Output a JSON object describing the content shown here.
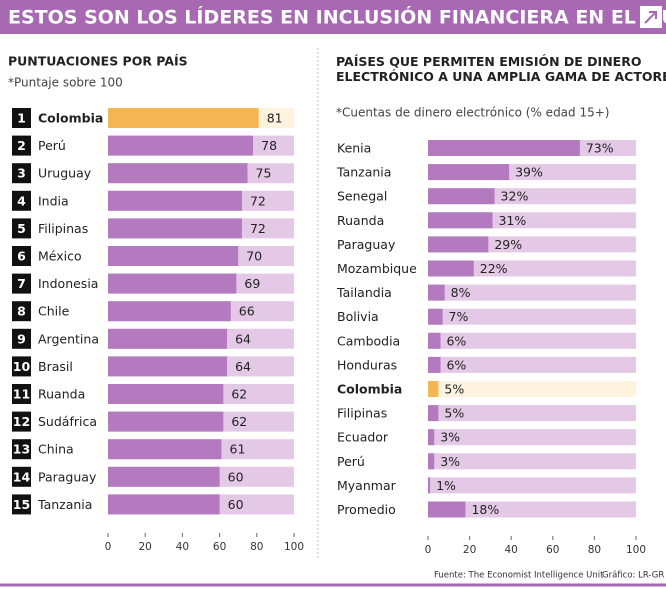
{
  "header": {
    "title": "ESTOS SON LOS LÍDERES EN INCLUSIÓN FINANCIERA EN EL MUNDO"
  },
  "footer": {
    "source": "Fuente: The Economist Intelligence Unit",
    "credit": "Gráfico: LR-GR"
  },
  "chart_data": [
    {
      "type": "bar",
      "title": "PUNTUACIONES POR PAÍS",
      "subtitle": "*Puntaje sobre 100",
      "ranks": [
        1,
        2,
        3,
        4,
        5,
        6,
        7,
        8,
        9,
        10,
        11,
        12,
        13,
        14,
        15
      ],
      "categories": [
        "Colombia",
        "Perú",
        "Uruguay",
        "India",
        "Filipinas",
        "México",
        "Indonesia",
        "Chile",
        "Argentina",
        "Brasil",
        "Ruanda",
        "Sudáfrica",
        "China",
        "Paraguay",
        "Tanzania"
      ],
      "values": [
        81,
        78,
        75,
        72,
        72,
        70,
        69,
        66,
        64,
        64,
        62,
        62,
        61,
        60,
        60
      ],
      "color": "#b47abf",
      "track_color": "#e4c9e7",
      "colors": [
        "#f3b652",
        "#b47abf",
        "#b47abf",
        "#b47abf",
        "#b47abf",
        "#b47abf",
        "#b47abf",
        "#b47abf",
        "#b47abf",
        "#b47abf",
        "#b47abf",
        "#b47abf",
        "#b47abf",
        "#b47abf",
        "#b47abf"
      ],
      "track_colors": [
        "#fdf3df",
        "#e4c9e7",
        "#e4c9e7",
        "#e4c9e7",
        "#e4c9e7",
        "#e4c9e7",
        "#e4c9e7",
        "#e4c9e7",
        "#e4c9e7",
        "#e4c9e7",
        "#e4c9e7",
        "#e4c9e7",
        "#e4c9e7",
        "#e4c9e7",
        "#e4c9e7"
      ],
      "xlim": [
        0,
        100
      ],
      "xticks": [
        0,
        20,
        40,
        60,
        80,
        100
      ]
    },
    {
      "type": "bar",
      "title": "PAÍSES QUE PERMITEN EMISIÓN DE DINERO ELECTRÓNICO A UNA AMPLIA GAMA DE ACTORES",
      "subtitle": "*Cuentas de dinero electrónico (% edad 15+)",
      "categories": [
        "Kenia",
        "Tanzania",
        "Senegal",
        "Ruanda",
        "Paraguay",
        "Mozambique",
        "Tailandia",
        "Bolivia",
        "Cambodia",
        "Honduras",
        "Colombia",
        "Filipinas",
        "Ecuador",
        "Perú",
        "Myanmar",
        "Promedio"
      ],
      "values": [
        73,
        39,
        32,
        31,
        29,
        22,
        8,
        7,
        6,
        6,
        5,
        5,
        3,
        3,
        1,
        18
      ],
      "value_labels": [
        "73%",
        "39%",
        "32%",
        "31%",
        "29%",
        "22%",
        "8%",
        "7%",
        "6%",
        "6%",
        "5%",
        "5%",
        "3%",
        "3%",
        "1%",
        "18%"
      ],
      "color": "#b47abf",
      "track_color": "#e4c9e7",
      "colors": [
        "#b47abf",
        "#b47abf",
        "#b47abf",
        "#b47abf",
        "#b47abf",
        "#b47abf",
        "#b47abf",
        "#b47abf",
        "#b47abf",
        "#b47abf",
        "#f3b652",
        "#b47abf",
        "#b47abf",
        "#b47abf",
        "#b47abf",
        "#b47abf"
      ],
      "track_colors": [
        "#e4c9e7",
        "#e4c9e7",
        "#e4c9e7",
        "#e4c9e7",
        "#e4c9e7",
        "#e4c9e7",
        "#e4c9e7",
        "#e4c9e7",
        "#e4c9e7",
        "#e4c9e7",
        "#fdf3df",
        "#e4c9e7",
        "#e4c9e7",
        "#e4c9e7",
        "#e4c9e7",
        "#e4c9e7"
      ],
      "xlim": [
        0,
        100
      ],
      "xticks": [
        0,
        20,
        40,
        60,
        80,
        100
      ]
    }
  ]
}
